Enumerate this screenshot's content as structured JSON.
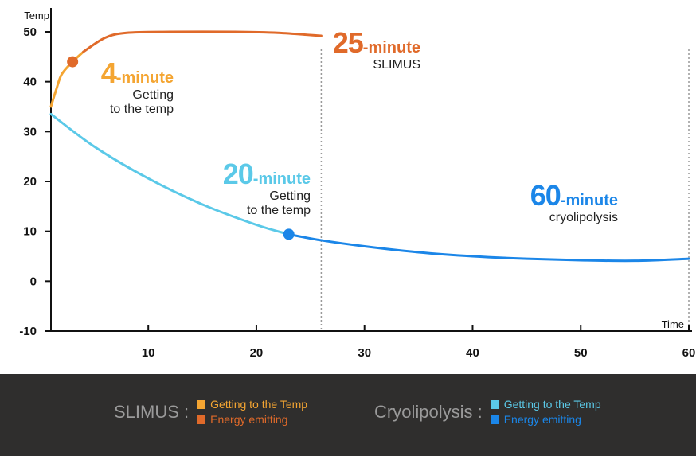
{
  "chart_data": {
    "type": "line",
    "xlabel": "Time",
    "ylabel": "Temp",
    "xlim": [
      1,
      60
    ],
    "ylim": [
      -10,
      50
    ],
    "x_ticks": [
      10,
      20,
      30,
      40,
      50,
      60
    ],
    "y_ticks": [
      50,
      40,
      30,
      20,
      10,
      0,
      -10
    ],
    "grid": false,
    "series": [
      {
        "name": "SLIMUS : Getting to the Temp",
        "color": "#f4a532",
        "points": [
          [
            1,
            35
          ],
          [
            1.5,
            38.5
          ],
          [
            2,
            41.5
          ],
          [
            3,
            44
          ],
          [
            4,
            46
          ]
        ]
      },
      {
        "name": "SLIMUS : Energy emitting",
        "color": "#e06a2a",
        "points": [
          [
            4,
            46
          ],
          [
            6,
            48.8
          ],
          [
            8,
            49.8
          ],
          [
            12,
            50
          ],
          [
            18,
            50
          ],
          [
            22,
            49.8
          ],
          [
            26,
            49.2
          ]
        ]
      },
      {
        "name": "Cryolipolysis : Getting to the Temp",
        "color": "#5bc9e8",
        "points": [
          [
            1,
            33.5
          ],
          [
            5,
            27
          ],
          [
            10,
            20.6
          ],
          [
            15,
            15.4
          ],
          [
            20,
            11.3
          ],
          [
            23,
            9.4
          ]
        ]
      },
      {
        "name": "Cryolipolysis : Energy emitting",
        "color": "#1b86e8",
        "points": [
          [
            23,
            9.4
          ],
          [
            26,
            8.2
          ],
          [
            30,
            7
          ],
          [
            35,
            5.8
          ],
          [
            40,
            5
          ],
          [
            45,
            4.5
          ],
          [
            50,
            4.2
          ],
          [
            55,
            4.1
          ],
          [
            60,
            4.5
          ]
        ]
      }
    ],
    "markers": [
      {
        "x": 3,
        "y": 44,
        "color": "#e06a2a"
      },
      {
        "x": 23,
        "y": 9.4,
        "color": "#1b86e8"
      }
    ],
    "vlines": [
      26,
      60
    ],
    "annotations": [
      {
        "num": "4",
        "unit": "-minute",
        "line1": "Getting",
        "line2": "to the temp",
        "num_color": "#f4a532",
        "unit_color": "#f4a532"
      },
      {
        "num": "25",
        "unit": "-minute",
        "line1": "SLIMUS",
        "line2": "",
        "num_color": "#e06a2a",
        "unit_color": "#e06a2a"
      },
      {
        "num": "20",
        "unit": "-minute",
        "line1": "Getting",
        "line2": "to the temp",
        "num_color": "#5bc9e8",
        "unit_color": "#5bc9e8"
      },
      {
        "num": "60",
        "unit": "-minute",
        "line1": "cryolipolysis",
        "line2": "",
        "num_color": "#1b86e8",
        "unit_color": "#1b86e8"
      }
    ]
  },
  "legend": {
    "groups": [
      {
        "title": "SLIMUS :",
        "items": [
          {
            "label": "Getting to the Temp",
            "color": "#f4a532"
          },
          {
            "label": "Energy emitting",
            "color": "#e06a2a"
          }
        ]
      },
      {
        "title": "Cryolipolysis :",
        "items": [
          {
            "label": "Getting to the Temp",
            "color": "#5bc9e8"
          },
          {
            "label": "Energy emitting",
            "color": "#1b86e8"
          }
        ]
      }
    ]
  }
}
